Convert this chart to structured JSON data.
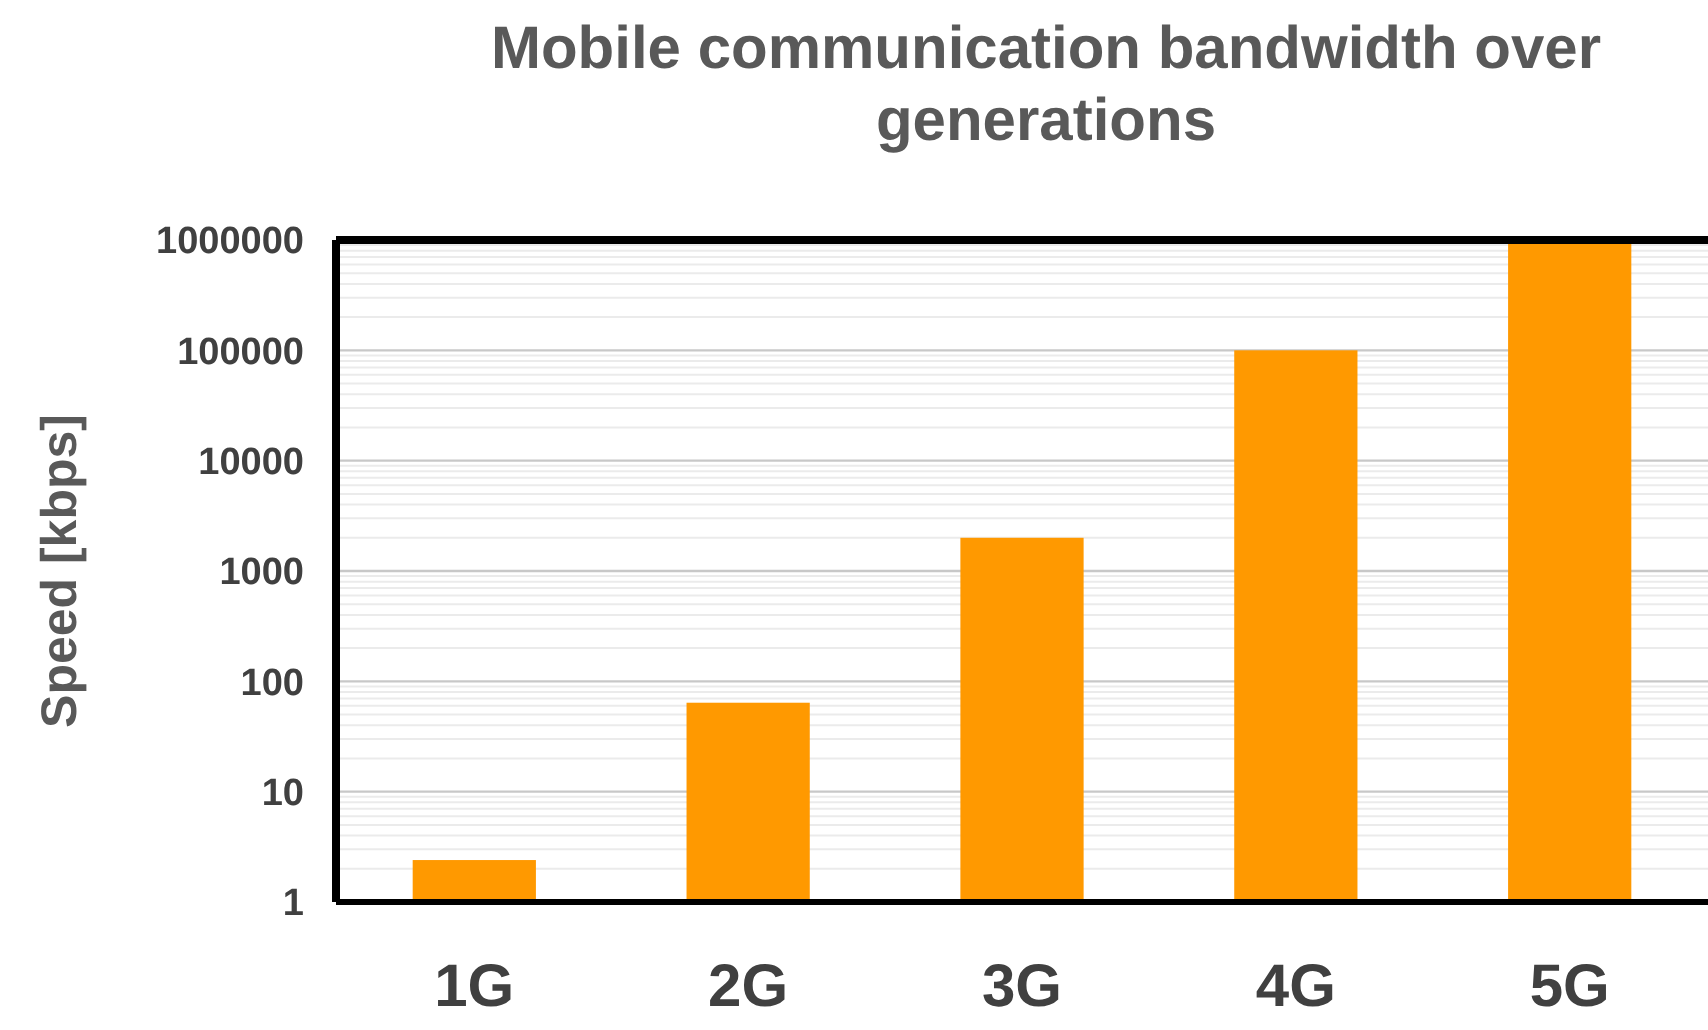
{
  "chart_data": {
    "type": "bar",
    "title": "Mobile communication bandwidth over generations",
    "ylabel": "Speed [kbps]",
    "categories": [
      "1G",
      "2G",
      "3G",
      "4G",
      "5G"
    ],
    "values": [
      2.4,
      64,
      2000,
      100000,
      1000000
    ],
    "color": "#ff9900",
    "log": true,
    "ylim": [
      1,
      1000000
    ],
    "yticks": [
      1,
      10,
      100,
      1000,
      10000,
      100000,
      1000000
    ],
    "grid": "y"
  }
}
